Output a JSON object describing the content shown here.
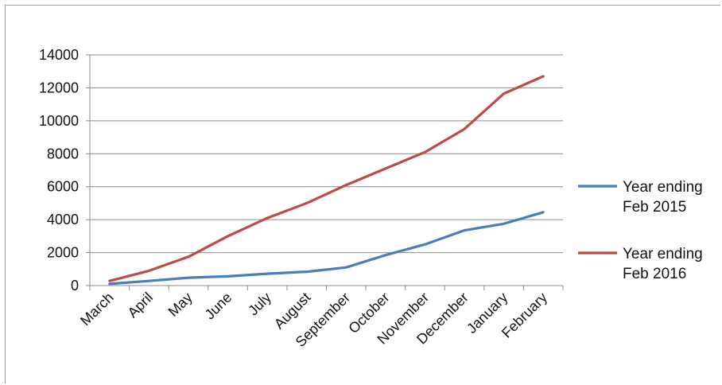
{
  "chart_data": {
    "type": "line",
    "title": "",
    "xlabel": "",
    "ylabel": "",
    "categories": [
      "March",
      "April",
      "May",
      "June",
      "July",
      "August",
      "September",
      "October",
      "November",
      "December",
      "January",
      "February"
    ],
    "ylim": [
      0,
      14000
    ],
    "yticks": [
      0,
      2000,
      4000,
      6000,
      8000,
      10000,
      12000,
      14000
    ],
    "grid": true,
    "legend_position": "right",
    "series": [
      {
        "name": "Year ending Feb 2015",
        "legend_lines": [
          "Year ending",
          "Feb 2015"
        ],
        "color": "#4a7ebb",
        "values": [
          100,
          280,
          480,
          560,
          720,
          840,
          1100,
          1850,
          2500,
          3350,
          3750,
          4450
        ]
      },
      {
        "name": "Year ending Feb 2016",
        "legend_lines": [
          "Year ending",
          "Feb 2016"
        ],
        "color": "#be4b48",
        "values": [
          280,
          900,
          1750,
          3000,
          4100,
          5000,
          6100,
          7100,
          8100,
          9500,
          11650,
          12700
        ]
      }
    ]
  }
}
